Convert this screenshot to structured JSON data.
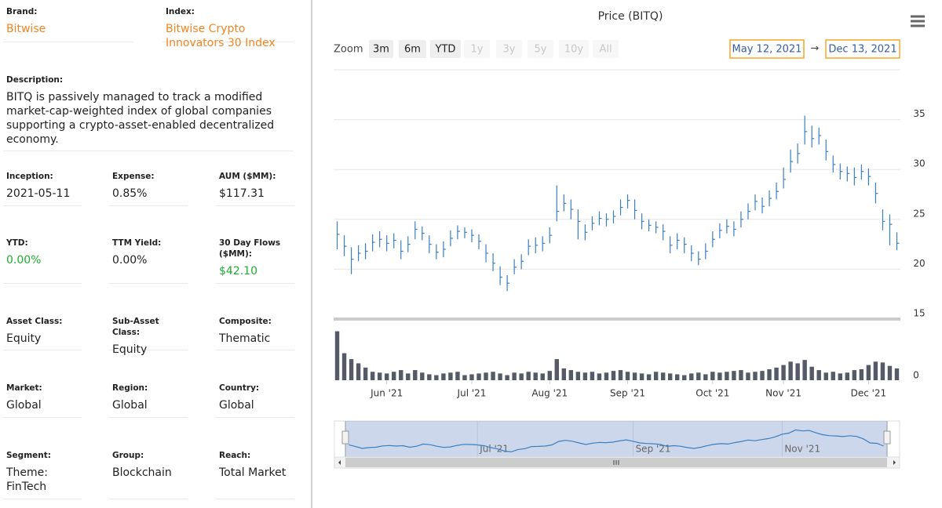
{
  "info": {
    "rows": [
      [
        {
          "label": "Brand:",
          "value": "Bitwise",
          "color": "#f5841f"
        },
        {
          "label": "Index:",
          "value": "Bitwise Crypto Innovators 30 Index",
          "color": "#f5841f"
        }
      ],
      [
        {
          "label": "Description:",
          "value": "BITQ is passively managed to track a modified market-cap-weighted index of global companies supporting a crypto-asset-enabled decentralized economy."
        }
      ],
      [
        {
          "label": "Inception:",
          "value": "2021-05-11"
        },
        {
          "label": "Expense:",
          "value": "0.85%"
        },
        {
          "label": "AUM ($MM):",
          "value": "$117.31"
        }
      ],
      [
        {
          "label": "YTD:",
          "value": "0.00%",
          "color": "#1fae2f"
        },
        {
          "label": "TTM Yield:",
          "value": "0.00%"
        },
        {
          "label": "30 Day Flows ($MM):",
          "value": "$42.10",
          "color": "#1fae2f"
        }
      ],
      [
        {
          "label": "Asset Class:",
          "value": "Equity"
        },
        {
          "label": "Sub-Asset Class:",
          "value": "Equity"
        },
        {
          "label": "Composite:",
          "value": "Thematic"
        }
      ],
      [
        {
          "label": "Market:",
          "value": "Global"
        },
        {
          "label": "Region:",
          "value": "Global"
        },
        {
          "label": "Country:",
          "value": "Global"
        }
      ],
      [
        {
          "label": "Segment:",
          "value": "Theme: FinTech"
        },
        {
          "label": "Group:",
          "value": "Blockchain"
        },
        {
          "label": "Reach:",
          "value": "Total Market"
        }
      ]
    ]
  },
  "chart_data": {
    "type": "ohlc",
    "title": "Price (BITQ)",
    "zoom_label": "Zoom",
    "zoom_buttons": [
      {
        "label": "3m",
        "enabled": true
      },
      {
        "label": "6m",
        "enabled": true
      },
      {
        "label": "YTD",
        "enabled": true
      },
      {
        "label": "1y",
        "enabled": false
      },
      {
        "label": "3y",
        "enabled": false
      },
      {
        "label": "5y",
        "enabled": false
      },
      {
        "label": "10y",
        "enabled": false
      },
      {
        "label": "All",
        "enabled": false
      }
    ],
    "range_from": "May 12, 2021",
    "range_arrow": "→",
    "range_to": "Dec 13, 2021",
    "color": "#3a7fc1",
    "ylim": [
      15,
      40
    ],
    "yticks": [
      15,
      20,
      25,
      30,
      35
    ],
    "volume_ylim": [
      0,
      65
    ],
    "volume_yticks": [
      0
    ],
    "volume_color": "#555a66",
    "xticks": [
      {
        "value": 7,
        "label": "Jun '21"
      },
      {
        "value": 19,
        "label": "Jul '21"
      },
      {
        "value": 30,
        "label": "Aug '21"
      },
      {
        "value": 41,
        "label": "Sep '21"
      },
      {
        "value": 53,
        "label": "Oct '21"
      },
      {
        "value": 63,
        "label": "Nov '21"
      },
      {
        "value": 75,
        "label": "Dec '21"
      }
    ],
    "navigator_xticks": [
      {
        "value": 19,
        "label": "Jul '21"
      },
      {
        "value": 42,
        "label": "Sep '21"
      },
      {
        "value": 64,
        "label": "Nov '21"
      }
    ],
    "close": [
      23.5,
      22.3,
      21.0,
      21.6,
      21.8,
      22.7,
      23.0,
      22.6,
      22.9,
      21.8,
      22.5,
      24.0,
      23.6,
      22.5,
      21.7,
      22.0,
      23.1,
      23.8,
      23.7,
      23.4,
      22.8,
      21.6,
      20.6,
      19.2,
      18.6,
      20.2,
      20.8,
      22.3,
      22.4,
      22.6,
      23.4,
      25.8,
      26.6,
      26.0,
      24.8,
      23.7,
      24.6,
      25.1,
      25.0,
      25.3,
      26.2,
      26.9,
      25.9,
      24.8,
      24.4,
      24.2,
      23.8,
      22.4,
      22.9,
      22.5,
      21.6,
      21.0,
      21.8,
      23.0,
      23.9,
      24.3,
      24.0,
      25.0,
      25.8,
      26.8,
      26.3,
      27.1,
      27.8,
      29.0,
      30.8,
      31.6,
      33.8,
      33.1,
      33.4,
      31.8,
      30.5,
      29.8,
      29.6,
      29.2,
      29.8,
      29.3,
      27.6,
      24.8,
      24.5,
      22.6
    ],
    "high": [
      24.8,
      23.4,
      22.2,
      22.4,
      22.6,
      23.5,
      23.8,
      23.4,
      23.6,
      22.9,
      23.3,
      24.8,
      24.3,
      23.4,
      22.5,
      22.8,
      23.9,
      24.4,
      24.2,
      24.0,
      23.5,
      22.5,
      21.6,
      20.3,
      19.4,
      21.0,
      21.5,
      23.0,
      23.2,
      23.3,
      24.2,
      28.4,
      27.5,
      27.0,
      26.0,
      24.5,
      25.3,
      25.8,
      25.6,
      25.9,
      27.0,
      27.5,
      27.0,
      25.6,
      25.0,
      24.8,
      24.5,
      23.3,
      23.6,
      23.2,
      22.4,
      21.8,
      22.6,
      23.8,
      24.6,
      25.0,
      24.8,
      25.8,
      26.6,
      27.5,
      27.2,
      27.9,
      28.7,
      30.2,
      32.0,
      32.6,
      35.4,
      34.4,
      34.2,
      33.0,
      31.4,
      30.6,
      30.3,
      30.2,
      30.5,
      30.1,
      28.7,
      26.0,
      25.5,
      23.7
    ],
    "low": [
      22.0,
      21.3,
      19.5,
      20.8,
      21.0,
      21.8,
      22.2,
      21.8,
      22.1,
      21.0,
      21.7,
      23.0,
      22.9,
      21.6,
      21.0,
      21.2,
      22.3,
      23.0,
      23.1,
      22.7,
      22.0,
      20.7,
      19.8,
      18.4,
      17.8,
      19.5,
      20.0,
      21.4,
      21.6,
      21.8,
      22.6,
      24.8,
      25.8,
      25.0,
      23.0,
      22.9,
      23.9,
      24.4,
      24.3,
      24.6,
      25.4,
      26.1,
      25.0,
      24.0,
      23.8,
      23.6,
      22.9,
      21.6,
      22.0,
      21.6,
      20.8,
      20.4,
      21.0,
      22.2,
      23.1,
      23.6,
      23.3,
      24.2,
      25.0,
      25.9,
      25.6,
      26.3,
      27.0,
      28.1,
      29.7,
      30.6,
      32.5,
      32.2,
      32.5,
      30.9,
      29.7,
      29.0,
      28.8,
      28.4,
      29.0,
      28.4,
      26.6,
      23.9,
      22.4,
      21.9
    ],
    "volume": [
      58,
      32,
      25,
      20,
      15,
      10,
      9,
      8,
      10,
      12,
      8,
      12,
      9,
      7,
      6,
      8,
      9,
      10,
      6,
      7,
      8,
      9,
      10,
      8,
      6,
      9,
      8,
      10,
      9,
      8,
      11,
      25,
      14,
      12,
      10,
      9,
      10,
      8,
      9,
      11,
      12,
      10,
      9,
      8,
      7,
      10,
      9,
      8,
      7,
      6,
      8,
      9,
      7,
      10,
      9,
      10,
      11,
      12,
      9,
      10,
      11,
      13,
      15,
      18,
      22,
      20,
      24,
      16,
      12,
      9,
      10,
      8,
      9,
      12,
      13,
      18,
      22,
      21,
      17,
      14
    ]
  }
}
